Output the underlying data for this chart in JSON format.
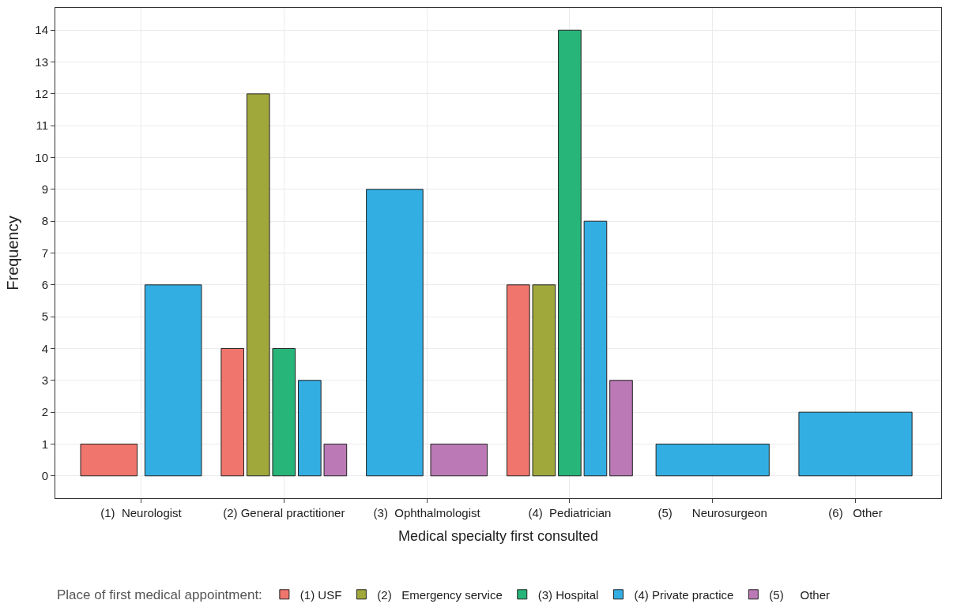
{
  "chart_data": {
    "type": "bar",
    "xlabel": "Medical specialty first consulted",
    "ylabel": "Frequency",
    "legend_title": "Place of first medical appointment:",
    "categories": [
      "(1)  Neurologist",
      "(2) General practitioner",
      "(3)  Ophthalmologist",
      "(4)  Pediatrician",
      "(5)      Neurosurgeon",
      "(6)   Other"
    ],
    "series": [
      {
        "name": "(1) USF",
        "color": "#f0756c",
        "values": [
          1,
          4,
          null,
          6,
          null,
          null
        ]
      },
      {
        "name": "(2)   Emergency service",
        "color": "#a0a83c",
        "values": [
          null,
          12,
          null,
          6,
          null,
          null
        ]
      },
      {
        "name": "(3) Hospital",
        "color": "#27b57a",
        "values": [
          null,
          4,
          null,
          14,
          null,
          null
        ]
      },
      {
        "name": "(4) Private practice",
        "color": "#33aee3",
        "values": [
          6,
          3,
          9,
          8,
          1,
          2
        ]
      },
      {
        "name": "(5)     Other",
        "color": "#bb79b5",
        "values": [
          null,
          1,
          1,
          3,
          null,
          null
        ]
      }
    ],
    "ylim": [
      -0.7,
      14.7
    ],
    "yticks": [
      0,
      1,
      2,
      3,
      4,
      5,
      6,
      7,
      8,
      9,
      10,
      11,
      12,
      13,
      14
    ],
    "grid": true,
    "legend": "bottom"
  }
}
